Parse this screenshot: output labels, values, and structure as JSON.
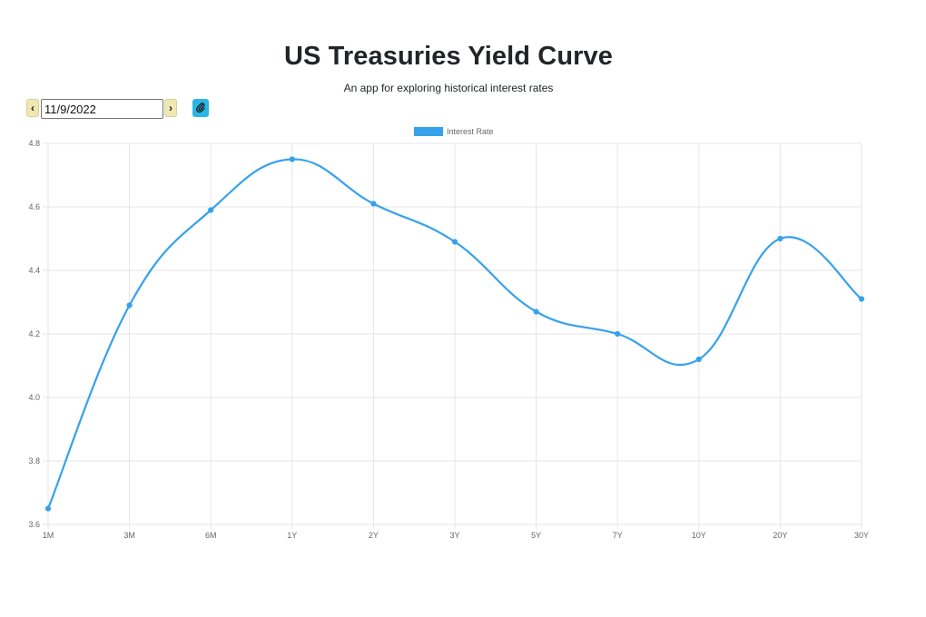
{
  "header": {
    "title": "US Treasuries Yield Curve",
    "subtitle": "An app for exploring historical interest rates"
  },
  "controls": {
    "prev_label": "‹",
    "next_label": "›",
    "date_value": "11/9/2022",
    "share_icon": "paperclip-icon"
  },
  "colors": {
    "series": "#36a2eb",
    "grid": "#e6e6e6",
    "accent_button": "#29b6e6",
    "nav_button": "#efe8b0"
  },
  "chart_data": {
    "type": "line",
    "categories": [
      "1M",
      "3M",
      "6M",
      "1Y",
      "2Y",
      "3Y",
      "5Y",
      "7Y",
      "10Y",
      "20Y",
      "30Y"
    ],
    "series": [
      {
        "name": "Interest Rate",
        "values": [
          3.65,
          4.29,
          4.59,
          4.75,
          4.61,
          4.49,
          4.27,
          4.2,
          4.12,
          4.5,
          4.31
        ]
      }
    ],
    "yticks": [
      3.6,
      3.8,
      4.0,
      4.2,
      4.4,
      4.6,
      4.8
    ],
    "ylim": [
      3.6,
      4.8
    ],
    "legend": "top-center",
    "grid": true,
    "smooth": true
  }
}
